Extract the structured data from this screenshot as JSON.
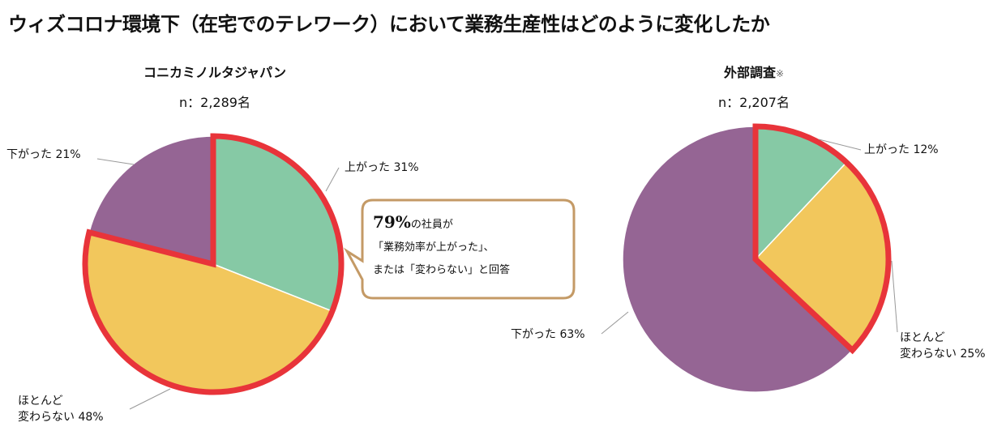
{
  "title": "ウィズコロナ環境下（在宅でのテレワーク）において業務生産性はどのように変化したか",
  "colors": {
    "up": "#86C9A5",
    "same": "#F2C75C",
    "down": "#956594",
    "highlight": "#E8343A",
    "callout_border": "#C49A66"
  },
  "chart_data": [
    {
      "type": "pie",
      "title": "コニカミノルタジャパン",
      "n_label": "n：2,289名",
      "slices": [
        {
          "label": "上がった 31%",
          "value": 31,
          "key": "up"
        },
        {
          "label_lines": [
            "ほとんど",
            "変わらない 48%"
          ],
          "value": 48,
          "key": "same"
        },
        {
          "label": "下がった 21%",
          "value": 21,
          "key": "down"
        }
      ],
      "highlighted": [
        "up",
        "same"
      ]
    },
    {
      "type": "pie",
      "title": "外部調査",
      "title_note": "※",
      "n_label": "n：2,207名",
      "slices": [
        {
          "label": "上がった 12%",
          "value": 12,
          "key": "up"
        },
        {
          "label_lines": [
            "ほとんど",
            "変わらない 25%"
          ],
          "value": 25,
          "key": "same"
        },
        {
          "label": "下がった 63%",
          "value": 63,
          "key": "down"
        }
      ],
      "highlighted": [
        "up",
        "same"
      ]
    }
  ],
  "callout": {
    "pct": "79%",
    "line1": "の社員が",
    "line2": "「業務効率が上がった」、",
    "line3": "または「変わらない」と回答"
  }
}
